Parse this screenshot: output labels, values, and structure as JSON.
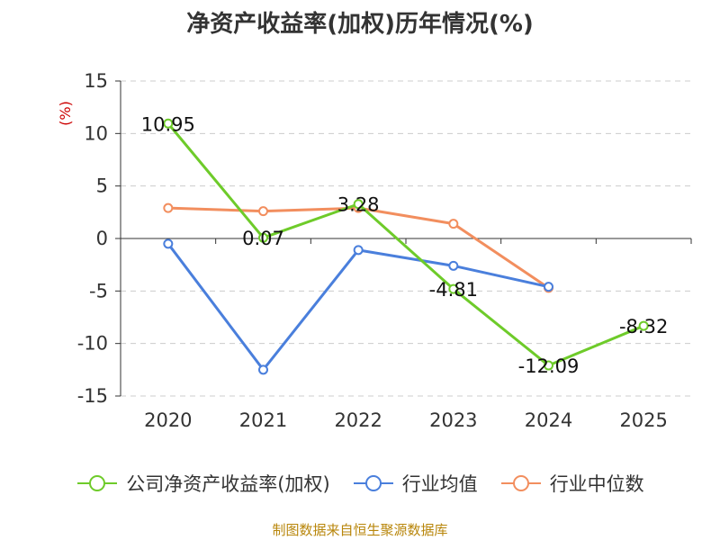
{
  "chart_data": {
    "type": "line",
    "title": "净资产收益率(加权)历年情况(%)",
    "ylabel": "(%)",
    "xlabel": "",
    "categories": [
      "2020",
      "2021",
      "2022",
      "2023",
      "2024",
      "2025"
    ],
    "ylim": [
      -15,
      15
    ],
    "yticks": [
      15,
      10,
      5,
      0,
      -5,
      -10,
      -15
    ],
    "grid": true,
    "legend_position": "bottom",
    "series": [
      {
        "name": "公司净资产收益率(加权)",
        "color": "#6ecb2a",
        "values": [
          10.95,
          0.07,
          3.28,
          -4.81,
          -12.09,
          -8.32
        ],
        "labels": [
          "10.95",
          "0.07",
          "3.28",
          "-4.81",
          "-12.09",
          "-8.32"
        ]
      },
      {
        "name": "行业均值",
        "color": "#4a7fdc",
        "values": [
          -0.5,
          -12.5,
          -1.1,
          -2.6,
          -4.6,
          null
        ]
      },
      {
        "name": "行业中位数",
        "color": "#f28e5e",
        "values": [
          2.9,
          2.6,
          2.9,
          1.4,
          -4.7,
          null
        ]
      }
    ],
    "source": "制图数据来自恒生聚源数据库"
  },
  "colors": {
    "axis": "#333333",
    "grid": "#cccccc",
    "ylabel": "#cc0000",
    "source": "#b8860b"
  }
}
